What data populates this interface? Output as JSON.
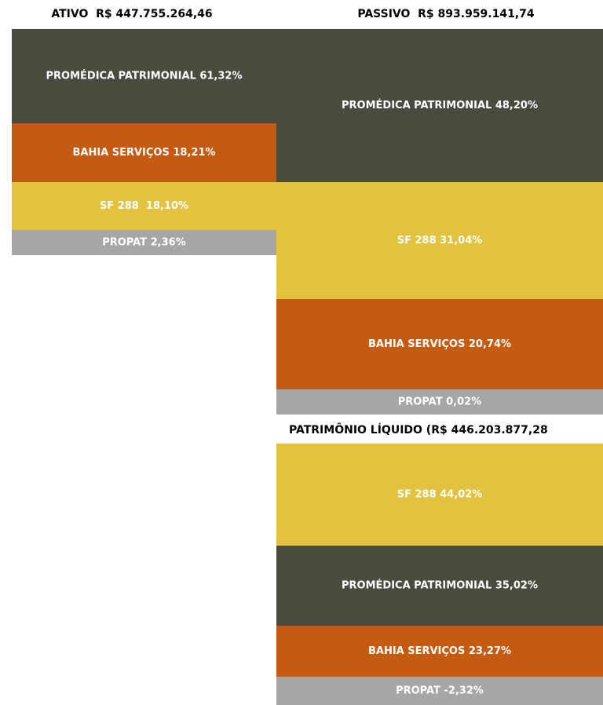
{
  "columns": [
    {
      "title": "ATIVO  R$ 447.755.264,46",
      "blocks": [
        {
          "label": "PROMÉDICA PATRIMONIAL 61,32%",
          "kind": "dark"
        },
        {
          "label": "BAHIA SERVIÇOS 18,21%",
          "kind": "orange"
        },
        {
          "label": "SF 288  18,10%",
          "kind": "yellow"
        },
        {
          "label": "PROPAT 2,36%",
          "kind": "gray"
        }
      ]
    },
    {
      "title": "PASSIVO  R$ 893.959.141,74",
      "blocks": [
        {
          "label": "PROMÉDICA PATRIMONIAL 48,20%",
          "kind": "dark"
        },
        {
          "label": "SF 288 31,04%",
          "kind": "yellow"
        },
        {
          "label": "BAHIA SERVIÇOS 20,74%",
          "kind": "orange"
        },
        {
          "label": "PROPAT 0,02%",
          "kind": "gray"
        }
      ]
    },
    {
      "title": "PATRIMÔNIO LÍQUIDO (R$ 446.203.877,28",
      "blocks": [
        {
          "label": "SF 288 44,02%",
          "kind": "yellow"
        },
        {
          "label": "PROMÉDICA PATRIMONIAL 35,02%",
          "kind": "dark"
        },
        {
          "label": "BAHIA SERVIÇOS 23,27%",
          "kind": "orange"
        },
        {
          "label": "PROPAT -2,32%",
          "kind": "gray"
        }
      ]
    }
  ]
}
